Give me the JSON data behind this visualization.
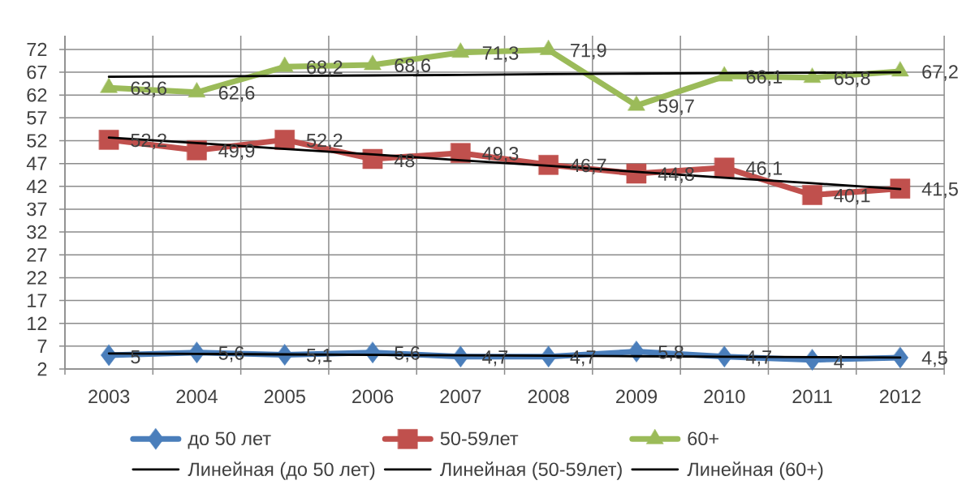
{
  "chart_data": {
    "type": "line",
    "categories": [
      "2003",
      "2004",
      "2005",
      "2006",
      "2007",
      "2008",
      "2009",
      "2010",
      "2011",
      "2012"
    ],
    "ylim": [
      2,
      75
    ],
    "yticks": [
      2,
      7,
      12,
      17,
      22,
      27,
      32,
      37,
      42,
      47,
      52,
      57,
      62,
      67,
      72
    ],
    "grid": true,
    "legend": "bottom",
    "series": [
      {
        "name": "до 50 лет",
        "color": "#4a7ebb",
        "marker": "diamond",
        "values": [
          5,
          5.6,
          5.1,
          5.6,
          4.7,
          4.7,
          5.8,
          4.7,
          4,
          4.5
        ],
        "value_labels": [
          "5",
          "5,6",
          "5,1",
          "5,6",
          "4,7",
          "4,7",
          "5,8",
          "4,7",
          "4",
          "4,5"
        ]
      },
      {
        "name": "50-59лет",
        "color": "#c0504d",
        "marker": "square",
        "values": [
          52.2,
          49.9,
          52.2,
          48,
          49.3,
          46.7,
          44.8,
          46.1,
          40.1,
          41.5
        ],
        "value_labels": [
          "52,2",
          "49,9",
          "52,2",
          "48",
          "49,3",
          "46,7",
          "44,8",
          "46,1",
          "40,1",
          "41,5"
        ]
      },
      {
        "name": "60+",
        "color": "#9bbb59",
        "marker": "triangle",
        "values": [
          63.6,
          62.6,
          68.2,
          68.6,
          71.3,
          71.9,
          59.7,
          66.1,
          65.8,
          67.2
        ],
        "value_labels": [
          "63,6",
          "62,6",
          "68,2",
          "68,6",
          "71,3",
          "71,9",
          "59,7",
          "66,1",
          "65,8",
          "67,2"
        ]
      },
      {
        "name": "Линейная (до 50 лет)",
        "color": "#000000",
        "values": [
          5.4,
          5.3,
          5.2,
          5.1,
          5.0,
          4.9,
          4.8,
          4.7,
          4.6,
          4.5
        ]
      },
      {
        "name": "Линейная (50-59лет)",
        "color": "#000000",
        "values": [
          52.7,
          51.5,
          50.2,
          49.0,
          47.7,
          46.5,
          45.2,
          43.9,
          42.7,
          41.4
        ]
      },
      {
        "name": "Линейная (60+)",
        "color": "#000000",
        "values": [
          66.0,
          66.1,
          66.2,
          66.3,
          66.4,
          66.6,
          66.7,
          66.8,
          66.9,
          67.0
        ]
      }
    ]
  }
}
